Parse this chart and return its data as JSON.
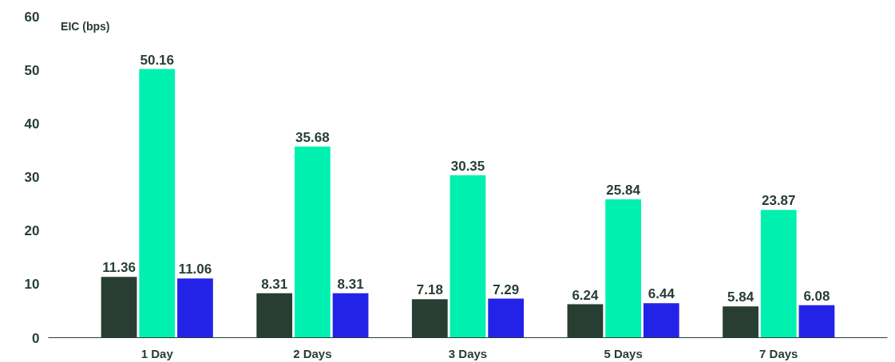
{
  "chart_data": {
    "type": "bar",
    "ylabel": "EIC (bps)",
    "categories": [
      "1 Day",
      "2 Days",
      "3 Days",
      "5 Days",
      "7 Days"
    ],
    "series": [
      {
        "color": "#283e33",
        "values": [
          11.36,
          8.31,
          7.18,
          6.24,
          5.84
        ]
      },
      {
        "color": "#00f0b0",
        "values": [
          50.16,
          35.68,
          30.35,
          25.84,
          23.87
        ]
      },
      {
        "color": "#2323e8",
        "values": [
          11.06,
          8.31,
          7.29,
          6.44,
          6.08
        ]
      }
    ],
    "ylim": [
      0,
      60
    ],
    "yticks": [
      0,
      10,
      20,
      30,
      40,
      50,
      60
    ],
    "grid": false,
    "data_labels": true
  }
}
